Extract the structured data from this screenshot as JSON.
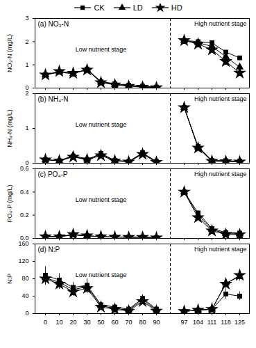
{
  "chart_data": [
    {
      "type": "line",
      "title": "(a) NO₃-N",
      "ylabel": "NO₃-N (mg/L)",
      "annotations": [
        "Low nutrient stage",
        "High nutrient stage"
      ],
      "categories": [
        0,
        10,
        20,
        30,
        50,
        60,
        70,
        80,
        90,
        null,
        97,
        104,
        111,
        118,
        125
      ],
      "series": [
        {
          "name": "CK",
          "color": "black",
          "marker": "square",
          "values": [
            0.57,
            0.68,
            0.62,
            0.82,
            0.28,
            0.18,
            0.12,
            0.08,
            0.04,
            null,
            2.05,
            2.0,
            1.95,
            1.55,
            1.3
          ],
          "errors": [
            null,
            null,
            null,
            null,
            null,
            null,
            null,
            null,
            null,
            null,
            0.04,
            0.04,
            0.06,
            0.06,
            0.05
          ]
        },
        {
          "name": "LD",
          "color": "black",
          "marker": "triangle",
          "values": [
            0.57,
            0.7,
            0.62,
            0.8,
            0.26,
            0.16,
            0.1,
            0.06,
            0.03,
            null,
            2.05,
            1.95,
            1.8,
            1.35,
            0.9
          ],
          "errors": [
            null,
            null,
            null,
            null,
            null,
            null,
            null,
            null,
            null,
            null,
            0.04,
            0.04,
            0.08,
            0.07,
            0.06
          ]
        },
        {
          "name": "HD",
          "color": "black",
          "marker": "star",
          "values": [
            0.57,
            0.72,
            0.64,
            0.78,
            0.24,
            0.14,
            0.08,
            0.04,
            0.02,
            null,
            2.05,
            1.9,
            1.65,
            1.15,
            0.65
          ],
          "errors": [
            null,
            null,
            null,
            null,
            null,
            null,
            null,
            null,
            null,
            null,
            0.04,
            0.05,
            0.1,
            0.08,
            0.07
          ]
        }
      ],
      "ylim": [
        0,
        3
      ],
      "yticks": [
        0,
        1,
        2,
        3
      ],
      "tick_labels": "y",
      "legend": "top"
    },
    {
      "type": "line",
      "title": "(b) NH₄-N",
      "ylabel": "NH₄-N (mg/L)",
      "annotations": [
        "Low nutrient stage",
        "High nutrient stage"
      ],
      "categories": [
        0,
        10,
        20,
        30,
        50,
        60,
        70,
        80,
        90,
        null,
        97,
        104,
        111,
        118,
        125
      ],
      "series": [
        {
          "name": "CK",
          "color": "black",
          "marker": "square",
          "values": [
            0.1,
            0.07,
            0.2,
            0.1,
            0.28,
            0.08,
            0.05,
            0.3,
            0.05,
            null,
            1.6,
            0.48,
            0.08,
            0.07,
            0.06
          ],
          "errors": [
            0.01,
            0.01,
            0.02,
            0.01,
            0.02,
            0.01,
            0.01,
            0.02,
            0.01,
            null,
            0.05,
            0.03,
            0.01,
            0.01,
            0.01
          ]
        },
        {
          "name": "LD",
          "color": "black",
          "marker": "triangle",
          "values": [
            0.1,
            0.07,
            0.22,
            0.12,
            0.25,
            0.08,
            0.05,
            0.28,
            0.04,
            null,
            1.6,
            0.46,
            0.07,
            0.06,
            0.05
          ],
          "errors": [
            0.01,
            0.01,
            0.02,
            0.01,
            0.02,
            0.01,
            0.01,
            0.02,
            0.01,
            null,
            0.05,
            0.03,
            0.01,
            0.01,
            0.01
          ]
        },
        {
          "name": "HD",
          "color": "black",
          "marker": "star",
          "values": [
            0.1,
            0.07,
            0.18,
            0.1,
            0.22,
            0.07,
            0.04,
            0.26,
            0.03,
            null,
            1.6,
            0.44,
            0.06,
            0.05,
            0.04
          ],
          "errors": [
            0.01,
            0.01,
            0.02,
            0.01,
            0.02,
            0.01,
            0.01,
            0.02,
            0.01,
            null,
            0.05,
            0.03,
            0.01,
            0.01,
            0.01
          ]
        }
      ],
      "ylim": [
        0,
        2
      ],
      "yticks": [
        0,
        1,
        2
      ],
      "tick_labels": "y"
    },
    {
      "type": "line",
      "title": "(c) PO₄-P",
      "ylabel": "PO₄-P (mg/L)",
      "annotations": [
        "Low nutrient stage",
        "High nutrient stage"
      ],
      "categories": [
        0,
        10,
        20,
        30,
        50,
        60,
        70,
        80,
        90,
        null,
        97,
        104,
        111,
        118,
        125
      ],
      "series": [
        {
          "name": "CK",
          "color": "black",
          "marker": "square",
          "values": [
            0.015,
            0.015,
            0.03,
            0.02,
            0.015,
            0.012,
            0.01,
            0.01,
            0.005,
            null,
            0.4,
            0.22,
            0.085,
            0.05,
            0.045
          ],
          "errors": [
            null,
            null,
            null,
            null,
            null,
            null,
            null,
            null,
            null,
            null,
            0.015,
            0.01,
            0.005,
            0.004,
            0.004
          ]
        },
        {
          "name": "LD",
          "color": "black",
          "marker": "triangle",
          "values": [
            0.015,
            0.015,
            0.032,
            0.022,
            0.015,
            0.012,
            0.01,
            0.01,
            0.005,
            null,
            0.4,
            0.2,
            0.075,
            0.042,
            0.038
          ],
          "errors": [
            null,
            null,
            null,
            null,
            null,
            null,
            null,
            null,
            null,
            null,
            0.015,
            0.01,
            0.005,
            0.004,
            0.004
          ]
        },
        {
          "name": "HD",
          "color": "black",
          "marker": "star",
          "values": [
            0.015,
            0.015,
            0.034,
            0.024,
            0.015,
            0.012,
            0.01,
            0.01,
            0.005,
            null,
            0.4,
            0.18,
            0.065,
            0.035,
            0.032
          ],
          "errors": [
            null,
            null,
            null,
            null,
            null,
            null,
            null,
            null,
            null,
            null,
            0.015,
            0.01,
            0.005,
            0.004,
            0.004
          ]
        }
      ],
      "ylim": [
        0,
        0.6
      ],
      "yticks": [
        {
          "value": 0,
          "label": "0.0"
        },
        0.2,
        0.4,
        0.6
      ],
      "tick_labels": "y"
    },
    {
      "type": "line",
      "title": "(d) N:P",
      "ylabel": "N:P",
      "annotations": [
        "Low nutrient stage",
        "High nutrient stage"
      ],
      "categories": [
        0,
        10,
        20,
        30,
        50,
        60,
        70,
        80,
        90,
        null,
        97,
        104,
        111,
        118,
        125
      ],
      "series": [
        {
          "name": "CK",
          "color": "black",
          "marker": "square",
          "values": [
            88,
            77,
            60,
            65,
            20,
            15,
            10,
            35,
            10,
            null,
            5,
            8,
            10,
            45,
            40
          ],
          "errors": [
            20,
            15,
            12,
            15,
            8,
            6,
            5,
            8,
            5,
            null,
            3,
            4,
            5,
            12,
            10
          ]
        },
        {
          "name": "LD",
          "color": "black",
          "marker": "triangle",
          "values": [
            82,
            72,
            55,
            62,
            18,
            12,
            8,
            32,
            8,
            null,
            5,
            8,
            10,
            70,
            85
          ],
          "errors": [
            15,
            12,
            10,
            12,
            7,
            5,
            4,
            7,
            4,
            null,
            3,
            4,
            5,
            10,
            10
          ]
        },
        {
          "name": "HD",
          "color": "black",
          "marker": "star",
          "values": [
            80,
            68,
            50,
            58,
            15,
            10,
            6,
            28,
            6,
            null,
            5,
            8,
            10,
            68,
            88
          ],
          "errors": [
            15,
            12,
            10,
            12,
            6,
            5,
            4,
            6,
            4,
            null,
            3,
            4,
            5,
            10,
            10
          ]
        }
      ],
      "ylim": [
        0,
        160
      ],
      "yticks": [
        0,
        40,
        80,
        120,
        160
      ]
    }
  ]
}
